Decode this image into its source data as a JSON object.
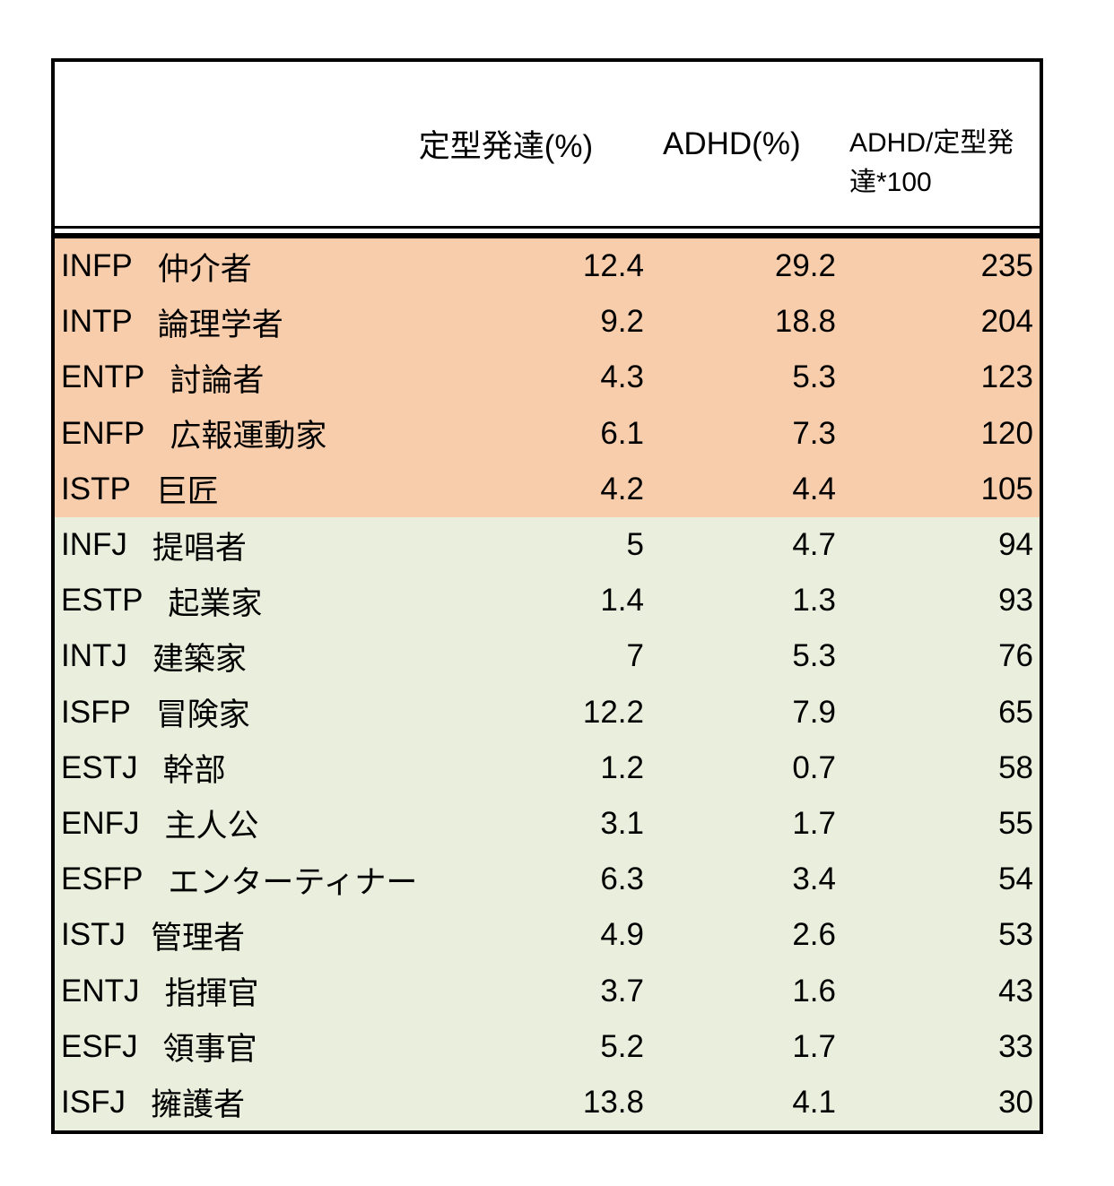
{
  "colors": {
    "orange_band": "#F8CDAC",
    "green_band": "#EAEEDD",
    "border": "#000000",
    "text": "#000000",
    "background": "#FFFFFF"
  },
  "chart_data": {
    "type": "table",
    "title": "",
    "columns": [
      "",
      "定型発達(%)",
      "ADHD(%)",
      "ADHD/定型発達*100"
    ],
    "rows": [
      {
        "code": "INFP",
        "name": "仲介者",
        "typical": 12.4,
        "adhd": 29.2,
        "ratio": 235,
        "band": "orange"
      },
      {
        "code": "INTP",
        "name": "論理学者",
        "typical": 9.2,
        "adhd": 18.8,
        "ratio": 204,
        "band": "orange"
      },
      {
        "code": "ENTP",
        "name": "討論者",
        "typical": 4.3,
        "adhd": 5.3,
        "ratio": 123,
        "band": "orange"
      },
      {
        "code": "ENFP",
        "name": "広報運動家",
        "typical": 6.1,
        "adhd": 7.3,
        "ratio": 120,
        "band": "orange"
      },
      {
        "code": "ISTP",
        "name": "巨匠",
        "typical": 4.2,
        "adhd": 4.4,
        "ratio": 105,
        "band": "orange"
      },
      {
        "code": "INFJ",
        "name": "提唱者",
        "typical": 5,
        "adhd": 4.7,
        "ratio": 94,
        "band": "green"
      },
      {
        "code": "ESTP",
        "name": "起業家",
        "typical": 1.4,
        "adhd": 1.3,
        "ratio": 93,
        "band": "green"
      },
      {
        "code": "INTJ",
        "name": "建築家",
        "typical": 7,
        "adhd": 5.3,
        "ratio": 76,
        "band": "green"
      },
      {
        "code": "ISFP",
        "name": "冒険家",
        "typical": 12.2,
        "adhd": 7.9,
        "ratio": 65,
        "band": "green"
      },
      {
        "code": "ESTJ",
        "name": "幹部",
        "typical": 1.2,
        "adhd": 0.7,
        "ratio": 58,
        "band": "green"
      },
      {
        "code": "ENFJ",
        "name": "主人公",
        "typical": 3.1,
        "adhd": 1.7,
        "ratio": 55,
        "band": "green"
      },
      {
        "code": "ESFP",
        "name": "エンターティナー",
        "typical": 6.3,
        "adhd": 3.4,
        "ratio": 54,
        "band": "green"
      },
      {
        "code": "ISTJ",
        "name": "管理者",
        "typical": 4.9,
        "adhd": 2.6,
        "ratio": 53,
        "band": "green"
      },
      {
        "code": "ENTJ",
        "name": "指揮官",
        "typical": 3.7,
        "adhd": 1.6,
        "ratio": 43,
        "band": "green"
      },
      {
        "code": "ESFJ",
        "name": "領事官",
        "typical": 5.2,
        "adhd": 1.7,
        "ratio": 33,
        "band": "green"
      },
      {
        "code": "ISFJ",
        "name": "擁護者",
        "typical": 13.8,
        "adhd": 4.1,
        "ratio": 30,
        "band": "green"
      }
    ]
  }
}
